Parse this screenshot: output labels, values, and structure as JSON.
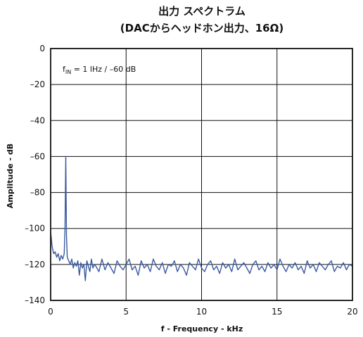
{
  "chart_data": {
    "type": "line",
    "title": "出力 スペクトラム",
    "subtitle": "(DACからヘッドホン出力、16Ω)",
    "xlabel": "f - Frequency - kHz",
    "ylabel": "Amplitude - dB",
    "xlim": [
      0,
      20
    ],
    "ylim": [
      -140,
      0
    ],
    "xticks": [
      "0",
      "5",
      "10",
      "15",
      "20"
    ],
    "yticks": [
      "0",
      "–20",
      "–40",
      "–60",
      "–80",
      "–100",
      "–120",
      "–140"
    ],
    "grid": true,
    "annotation": {
      "prefix": "f",
      "subscript": "IN",
      "suffix": " = 1 lHz / –60 dB"
    },
    "color": "#3a5aa0",
    "series": [
      {
        "values": {
          "x": [
            0.0,
            0.05,
            0.1,
            0.15,
            0.2,
            0.3,
            0.4,
            0.5,
            0.6,
            0.7,
            0.8,
            0.9,
            0.95,
            1.0,
            1.05,
            1.1,
            1.2,
            1.3,
            1.4,
            1.5,
            1.6,
            1.7,
            1.8,
            1.9,
            2.0,
            2.1,
            2.2,
            2.3,
            2.4,
            2.5,
            2.6,
            2.7,
            2.8,
            2.9,
            3.0,
            3.2,
            3.4,
            3.6,
            3.8,
            4.0,
            4.2,
            4.4,
            4.6,
            4.8,
            5.0,
            5.2,
            5.4,
            5.6,
            5.8,
            6.0,
            6.2,
            6.4,
            6.6,
            6.8,
            7.0,
            7.2,
            7.4,
            7.6,
            7.8,
            8.0,
            8.2,
            8.4,
            8.6,
            8.8,
            9.0,
            9.2,
            9.4,
            9.6,
            9.8,
            10.0,
            10.2,
            10.4,
            10.6,
            10.8,
            11.0,
            11.2,
            11.4,
            11.6,
            11.8,
            12.0,
            12.2,
            12.4,
            12.6,
            12.8,
            13.0,
            13.2,
            13.4,
            13.6,
            13.8,
            14.0,
            14.2,
            14.4,
            14.6,
            14.8,
            15.0,
            15.2,
            15.4,
            15.6,
            15.8,
            16.0,
            16.2,
            16.4,
            16.6,
            16.8,
            17.0,
            17.2,
            17.4,
            17.6,
            17.8,
            18.0,
            18.2,
            18.4,
            18.6,
            18.8,
            19.0,
            19.2,
            19.4,
            19.6,
            19.8,
            20.0
          ],
          "y": [
            -102,
            -106,
            -110,
            -112,
            -114,
            -113,
            -116,
            -114,
            -118,
            -115,
            -117,
            -114,
            -100,
            -60,
            -104,
            -116,
            -118,
            -120,
            -117,
            -122,
            -119,
            -121,
            -118,
            -126,
            -119,
            -122,
            -120,
            -129,
            -118,
            -121,
            -124,
            -117,
            -122,
            -120,
            -121,
            -124,
            -117,
            -123,
            -119,
            -122,
            -125,
            -118,
            -121,
            -123,
            -120,
            -117,
            -123,
            -121,
            -126,
            -118,
            -122,
            -120,
            -124,
            -117,
            -121,
            -123,
            -119,
            -125,
            -120,
            -121,
            -118,
            -124,
            -120,
            -122,
            -126,
            -119,
            -121,
            -123,
            -117,
            -122,
            -124,
            -120,
            -118,
            -123,
            -121,
            -125,
            -119,
            -122,
            -120,
            -124,
            -117,
            -123,
            -121,
            -119,
            -122,
            -125,
            -120,
            -118,
            -123,
            -121,
            -124,
            -119,
            -122,
            -120,
            -123,
            -117,
            -121,
            -124,
            -120,
            -122,
            -119,
            -123,
            -121,
            -125,
            -118,
            -122,
            -120,
            -124,
            -119,
            -121,
            -123,
            -120,
            -118,
            -124,
            -121,
            -122,
            -119,
            -123,
            -120,
            -121
          ]
        }
      }
    ]
  }
}
